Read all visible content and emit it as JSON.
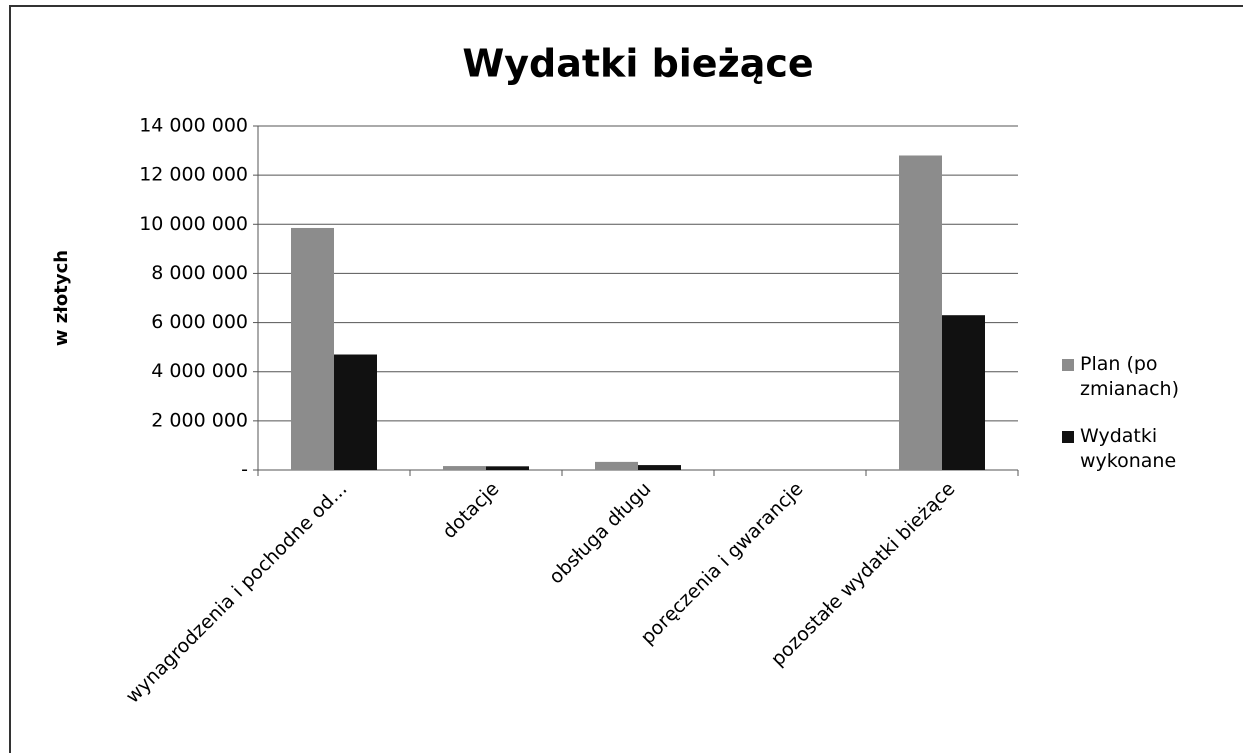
{
  "chart_data": {
    "type": "bar",
    "title": "Wydatki bieżące",
    "y_axis_label": "w złotych",
    "categories": [
      "wynagrodzenia i pochodne od...",
      "dotacje",
      "obsługa długu",
      "poręczenia i gwarancje",
      "pozostałe wydatki bieżące"
    ],
    "series": [
      {
        "name": "Plan (po zmianach)",
        "color": "#8c8c8c",
        "values": [
          9850000,
          160000,
          330000,
          0,
          12800000
        ]
      },
      {
        "name": "Wydatki wykonane",
        "color": "#111111",
        "values": [
          4700000,
          150000,
          200000,
          0,
          6300000
        ]
      }
    ],
    "ylim": [
      0,
      14000000
    ],
    "yticks": [
      {
        "value": 0,
        "label": "-"
      },
      {
        "value": 2000000,
        "label": "2 000 000"
      },
      {
        "value": 4000000,
        "label": "4 000 000"
      },
      {
        "value": 6000000,
        "label": "6 000 000"
      },
      {
        "value": 8000000,
        "label": "8 000 000"
      },
      {
        "value": 10000000,
        "label": "10 000 000"
      },
      {
        "value": 12000000,
        "label": "12 000 000"
      },
      {
        "value": 14000000,
        "label": "14 000 000"
      }
    ],
    "grid": true,
    "legend": "right"
  }
}
